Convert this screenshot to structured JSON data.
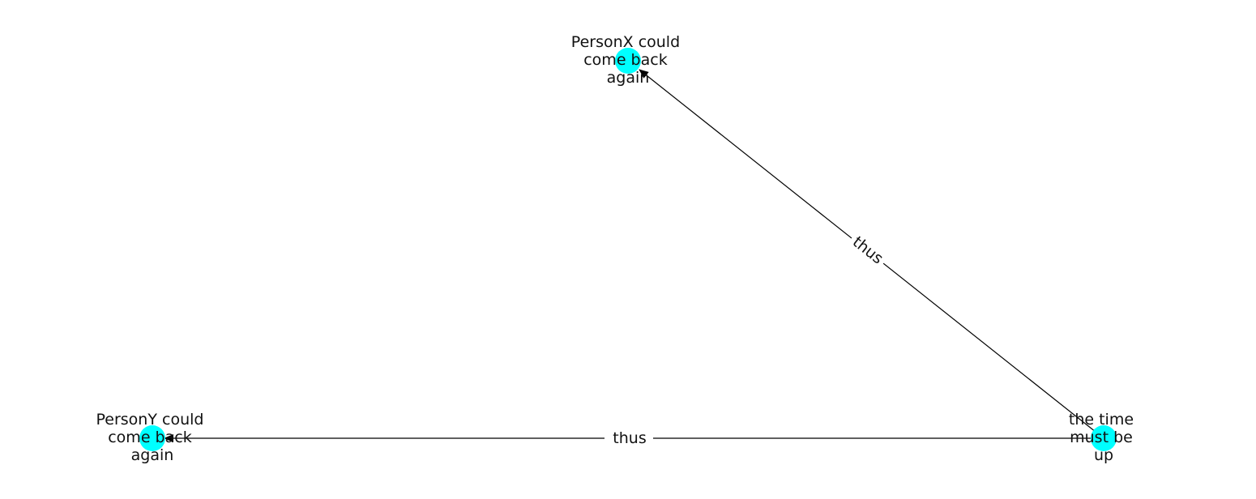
{
  "diagram": {
    "type": "directed-graph",
    "colors": {
      "node_fill": "#00FFFF",
      "edge": "#000000",
      "text": "#111111",
      "background": "#FFFFFF"
    },
    "nodes": [
      {
        "id": "personx",
        "lines": [
          "PersonX could",
          "come back",
          "again"
        ]
      },
      {
        "id": "persony",
        "lines": [
          "PersonY could",
          "come back",
          "again"
        ]
      },
      {
        "id": "time",
        "lines": [
          "the time",
          "must be",
          "up"
        ]
      }
    ],
    "edges": [
      {
        "from": "time",
        "to": "personx",
        "label": "thus"
      },
      {
        "from": "time",
        "to": "persony",
        "label": "thus"
      }
    ]
  }
}
